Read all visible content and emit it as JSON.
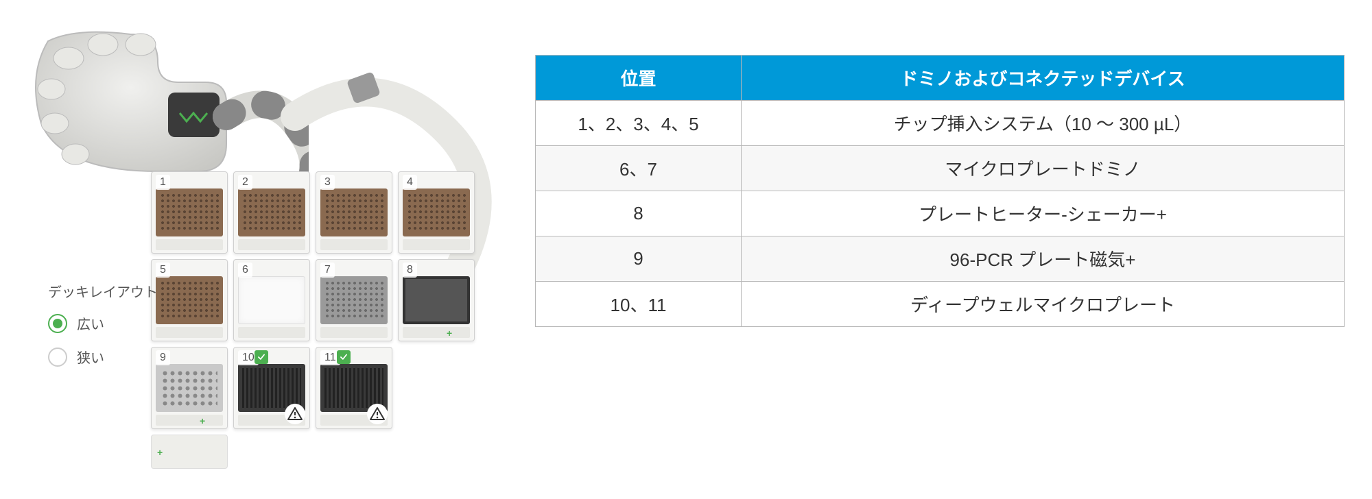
{
  "layout": {
    "title": "デッキレイアウト",
    "options": [
      {
        "label": "広い",
        "selected": true
      },
      {
        "label": "狭い",
        "selected": false
      }
    ]
  },
  "slots": {
    "row1": [
      {
        "num": "1",
        "plate": "brown"
      },
      {
        "num": "2",
        "plate": "brown"
      },
      {
        "num": "3",
        "plate": "brown"
      },
      {
        "num": "4",
        "plate": "brown"
      }
    ],
    "row2": [
      {
        "num": "5",
        "plate": "brown"
      },
      {
        "num": "6",
        "plate": "white"
      },
      {
        "num": "7",
        "plate": "grey"
      },
      {
        "num": "8",
        "plate": "dark",
        "lab": true
      }
    ],
    "row3": [
      {
        "num": "9",
        "plate": "greywells",
        "lab": true
      },
      {
        "num": "10",
        "plate": "deepdark",
        "check": true,
        "warn": true
      },
      {
        "num": "11",
        "plate": "deepdark",
        "check": true,
        "warn": true
      }
    ]
  },
  "table": {
    "headers": {
      "pos": "位置",
      "device": "ドミノおよびコネクテッドデバイス"
    },
    "rows": [
      {
        "pos": "1、2、3、4、5",
        "device": "チップ挿入システム（10 ～ 300 µL）"
      },
      {
        "pos": "6、7",
        "device": "マイクロプレートドミノ"
      },
      {
        "pos": "8",
        "device": "プレートヒーター-シェーカー+"
      },
      {
        "pos": "9",
        "device": "96-PCR プレート磁気+"
      },
      {
        "pos": "10、11",
        "device": "ディープウェルマイクロプレート"
      }
    ]
  },
  "colors": {
    "header_bg": "#0099d8",
    "accent_green": "#4CAF50",
    "border": "#b8b8b8"
  }
}
